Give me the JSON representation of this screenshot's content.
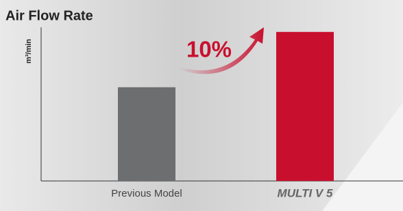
{
  "chart_data": {
    "type": "bar",
    "title": "Air Flow Rate",
    "y_label": "m³/min",
    "categories": [
      "Previous Model",
      "MULTI V 5"
    ],
    "values": [
      61,
      97
    ],
    "colors": [
      "#6d6e70",
      "#c8102e"
    ],
    "ylim": [
      0,
      100
    ],
    "annotation": "10%"
  }
}
